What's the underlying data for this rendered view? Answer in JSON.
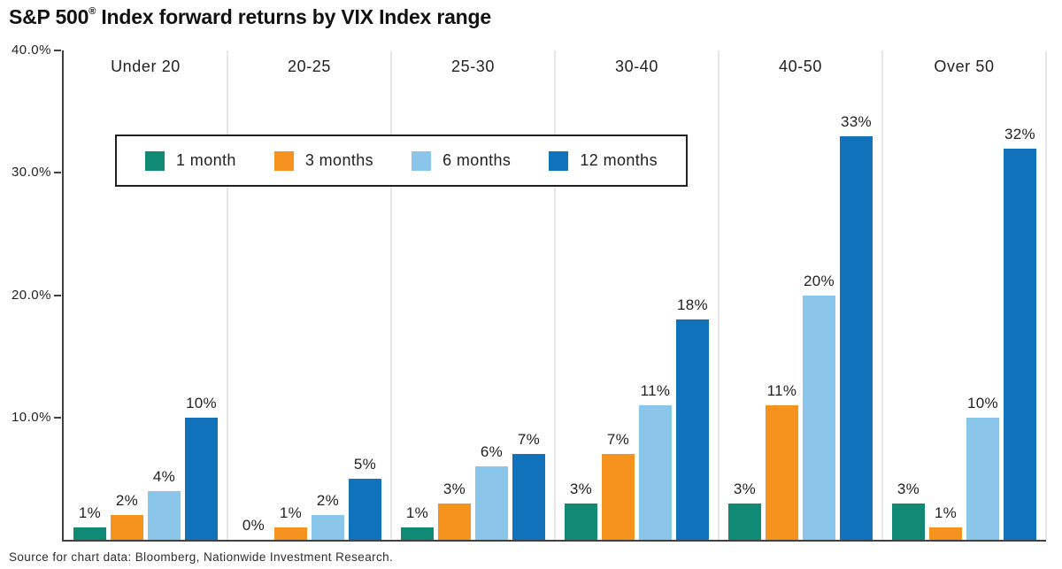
{
  "title": {
    "prefix": "S&P 500",
    "registered": "®",
    "suffix": " Index forward returns by VIX Index range"
  },
  "source": "Source for chart data: Bloomberg, Nationwide Investment Research.",
  "colors": {
    "series_1_month": "#108A74",
    "series_3_months": "#F6921E",
    "series_6_months": "#8AC6E9",
    "series_12_months": "#1173BC",
    "axis": "#414042",
    "panel_divider": "#e7e7e7",
    "text": "#231f20",
    "legend_border": "#231f20",
    "background": "#ffffff"
  },
  "chart_data": {
    "type": "bar",
    "title": "S&P 500® Index forward returns by VIX Index range",
    "categories": [
      "Under 20",
      "20-25",
      "25-30",
      "30-40",
      "40-50",
      "Over 50"
    ],
    "series": [
      {
        "name": "1 month",
        "color": "#108A74",
        "values": [
          1,
          0,
          1,
          3,
          3,
          3
        ]
      },
      {
        "name": "3 months",
        "color": "#F6921E",
        "values": [
          2,
          1,
          3,
          7,
          11,
          1
        ]
      },
      {
        "name": "6 months",
        "color": "#8AC6E9",
        "values": [
          4,
          2,
          6,
          11,
          20,
          10
        ]
      },
      {
        "name": "12 months",
        "color": "#1173BC",
        "values": [
          10,
          5,
          7,
          18,
          33,
          32
        ]
      }
    ],
    "xlabel": "",
    "ylabel": "",
    "ylim": [
      0,
      40
    ],
    "y_ticks": [
      {
        "value": 10,
        "label": "10.0%"
      },
      {
        "value": 20,
        "label": "20.0%"
      },
      {
        "value": 30,
        "label": "30.0%"
      },
      {
        "value": 40,
        "label": "40.0%"
      }
    ],
    "value_suffix": "%",
    "grid": "vertical panel dividers only",
    "legend_position": "top-left overlay box with black border"
  }
}
